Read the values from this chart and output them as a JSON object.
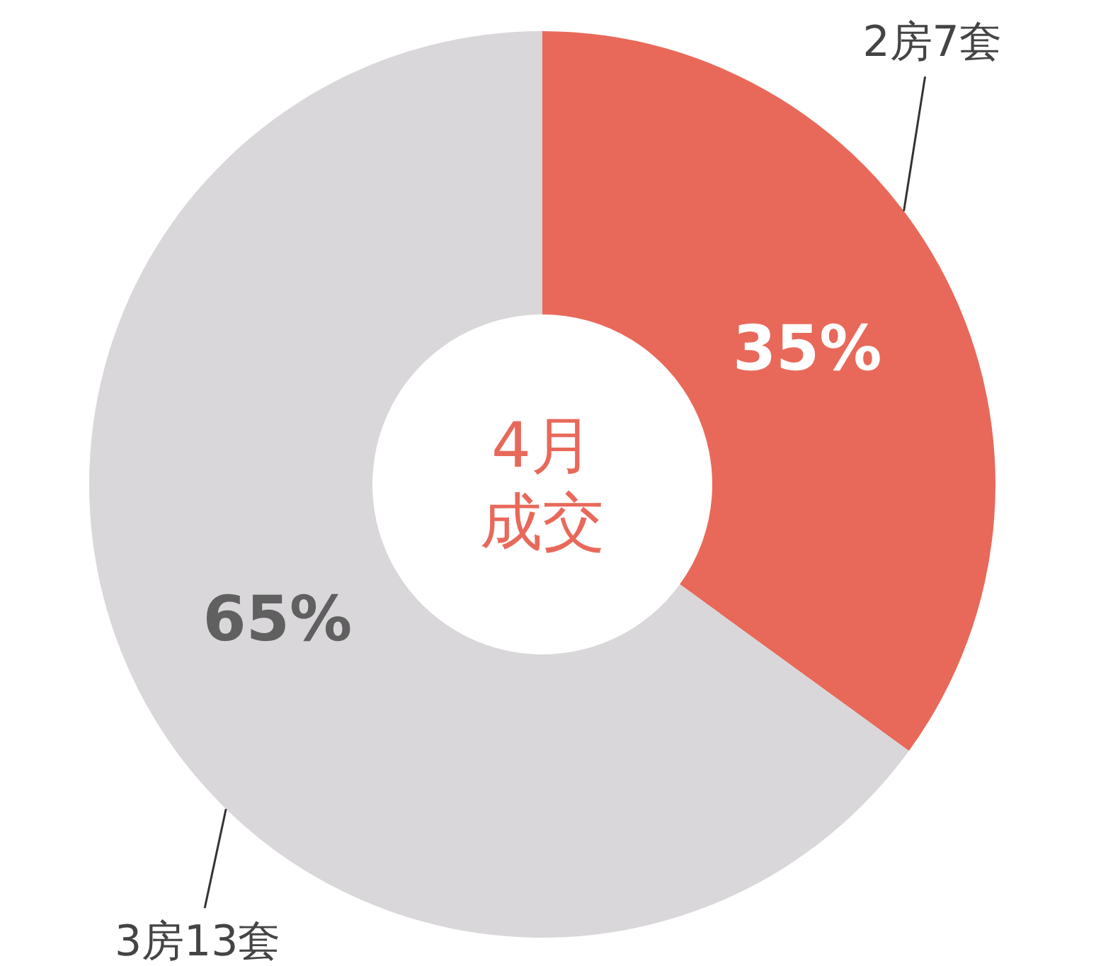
{
  "chart_data": {
    "type": "donut",
    "title": "4月成交",
    "categories": [
      "2房7套",
      "3房13套"
    ],
    "values": [
      35,
      65
    ],
    "colors": [
      "#e8695a",
      "#d9d7d9"
    ],
    "value_labels": [
      "35%",
      "65%"
    ]
  }
}
